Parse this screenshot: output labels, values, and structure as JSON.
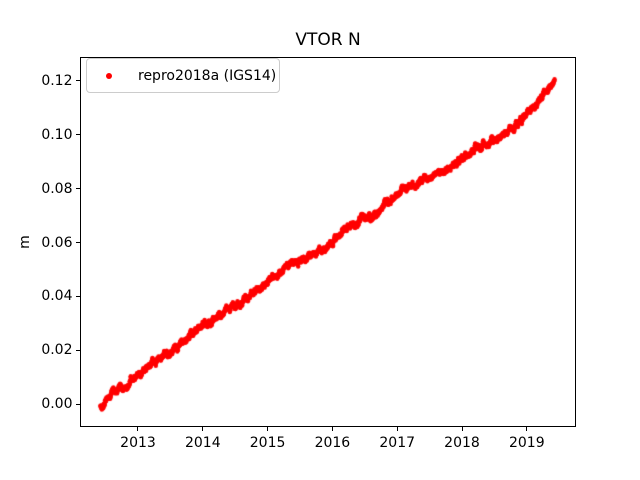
{
  "title": "VTOR N",
  "ylabel": "m",
  "legend": {
    "label": "repro2018a (IGS14)",
    "marker_color": "#ff0000"
  },
  "colors": {
    "background": "#ffffff",
    "axes": "#000000",
    "series": "#ff0000",
    "legend_border": "#cccccc"
  },
  "chart_data": {
    "type": "scatter",
    "title": "VTOR N",
    "xlabel": "",
    "ylabel": "m",
    "grid": false,
    "legend_position": "upper left",
    "legend_entries": [
      "repro2018a (IGS14)"
    ],
    "xlim": [
      2012.105,
      2019.759
    ],
    "ylim": [
      -0.0085,
      0.1289
    ],
    "xticks": [
      {
        "v": 2013,
        "label": "2013"
      },
      {
        "v": 2014,
        "label": "2014"
      },
      {
        "v": 2015,
        "label": "2015"
      },
      {
        "v": 2016,
        "label": "2016"
      },
      {
        "v": 2017,
        "label": "2017"
      },
      {
        "v": 2018,
        "label": "2018"
      },
      {
        "v": 2019,
        "label": "2019"
      }
    ],
    "yticks": [
      {
        "v": 0.0,
        "label": "0.00"
      },
      {
        "v": 0.02,
        "label": "0.02"
      },
      {
        "v": 0.04,
        "label": "0.04"
      },
      {
        "v": 0.06,
        "label": "0.06"
      },
      {
        "v": 0.08,
        "label": "0.08"
      },
      {
        "v": 0.1,
        "label": "0.10"
      },
      {
        "v": 0.12,
        "label": "0.12"
      }
    ],
    "series": [
      {
        "name": "repro2018a (IGS14)",
        "color": "#ff0000",
        "marker": "dot",
        "marker_radius_px": 2.2,
        "sampling": "daily",
        "x_range": [
          2012.42,
          2019.43
        ],
        "noise_std_m": 0.0009,
        "trend_anchors": [
          [
            2012.42,
            -0.001
          ],
          [
            2012.5,
            0.001
          ],
          [
            2012.62,
            0.0048
          ],
          [
            2012.8,
            0.0062
          ],
          [
            2013.0,
            0.0105
          ],
          [
            2013.25,
            0.0155
          ],
          [
            2013.45,
            0.0183
          ],
          [
            2013.65,
            0.0225
          ],
          [
            2013.85,
            0.0263
          ],
          [
            2014.05,
            0.03
          ],
          [
            2014.25,
            0.0333
          ],
          [
            2014.45,
            0.036
          ],
          [
            2014.6,
            0.038
          ],
          [
            2014.75,
            0.0412
          ],
          [
            2014.95,
            0.044
          ],
          [
            2015.15,
            0.0478
          ],
          [
            2015.3,
            0.0512
          ],
          [
            2015.45,
            0.053
          ],
          [
            2015.6,
            0.0543
          ],
          [
            2015.75,
            0.0558
          ],
          [
            2015.95,
            0.0595
          ],
          [
            2016.15,
            0.0635
          ],
          [
            2016.35,
            0.0668
          ],
          [
            2016.5,
            0.0692
          ],
          [
            2016.67,
            0.071
          ],
          [
            2016.85,
            0.0742
          ],
          [
            2017.0,
            0.0778
          ],
          [
            2017.15,
            0.0803
          ],
          [
            2017.35,
            0.0818
          ],
          [
            2017.55,
            0.0848
          ],
          [
            2017.75,
            0.0868
          ],
          [
            2017.95,
            0.09
          ],
          [
            2018.15,
            0.0938
          ],
          [
            2018.35,
            0.0962
          ],
          [
            2018.55,
            0.099
          ],
          [
            2018.75,
            0.1022
          ],
          [
            2018.95,
            0.1062
          ],
          [
            2019.1,
            0.1102
          ],
          [
            2019.25,
            0.115
          ],
          [
            2019.35,
            0.1182
          ],
          [
            2019.43,
            0.1205
          ]
        ]
      }
    ]
  }
}
